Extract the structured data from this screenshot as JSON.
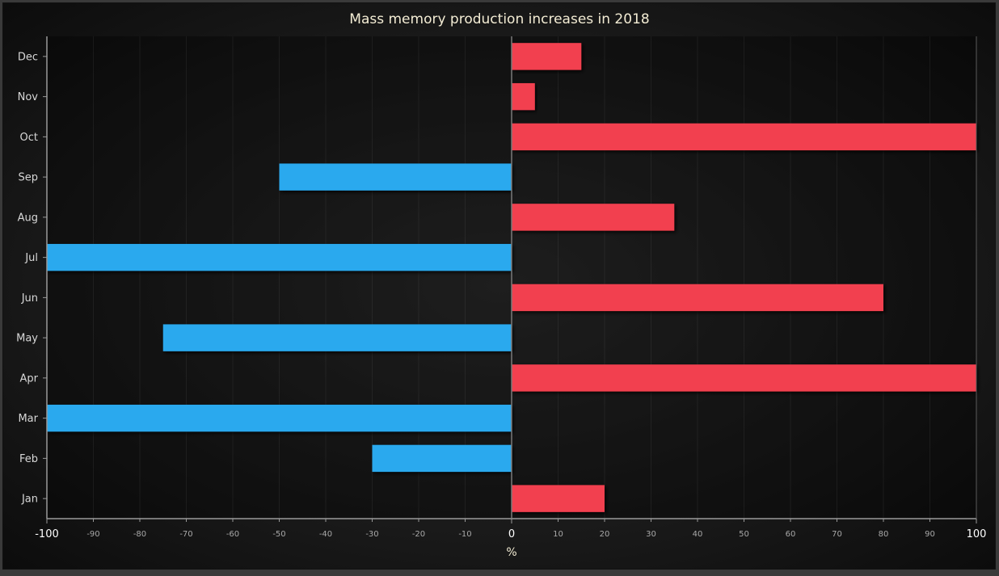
{
  "chart_data": {
    "type": "bar",
    "orientation": "horizontal",
    "title": "Mass memory production increases in 2018",
    "xlabel": "%",
    "ylabel": "",
    "categories": [
      "Jan",
      "Feb",
      "Mar",
      "Apr",
      "May",
      "Jun",
      "Jul",
      "Aug",
      "Sep",
      "Oct",
      "Nov",
      "Dec"
    ],
    "values": [
      20,
      -30,
      -100,
      100,
      -75,
      80,
      -100,
      35,
      -50,
      100,
      5,
      15
    ],
    "xlim": [
      -100,
      100
    ],
    "xticks": [
      -100,
      -90,
      -80,
      -70,
      -60,
      -50,
      -40,
      -30,
      -20,
      -10,
      0,
      10,
      20,
      30,
      40,
      50,
      60,
      70,
      80,
      90,
      100
    ],
    "grid": true,
    "legend": "none",
    "colors": {
      "positive": "#f2404f",
      "negative": "#2aa9ee",
      "background": "#1a1a1a"
    }
  }
}
